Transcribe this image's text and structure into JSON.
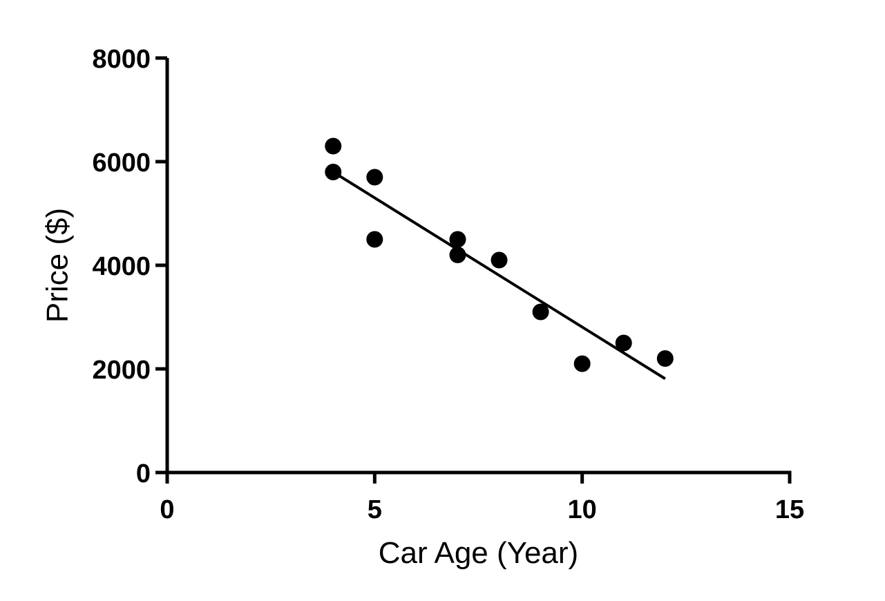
{
  "chart_data": {
    "type": "scatter",
    "title": "",
    "xlabel": "Car Age (Year)",
    "ylabel": "Price ($)",
    "xlim": [
      0,
      15
    ],
    "ylim": [
      0,
      8000
    ],
    "xticks": [
      0,
      5,
      10,
      15
    ],
    "yticks": [
      0,
      2000,
      4000,
      6000,
      8000
    ],
    "xtick_labels": [
      "0",
      "5",
      "10",
      "15"
    ],
    "ytick_labels": [
      "0",
      "2000",
      "4000",
      "6000",
      "8000"
    ],
    "grid": false,
    "legend": "none",
    "colors": {
      "points": "#000000",
      "line": "#000000",
      "axes": "#000000"
    },
    "series": [
      {
        "points": [
          {
            "x": 4,
            "y": 6300
          },
          {
            "x": 4,
            "y": 5800
          },
          {
            "x": 5,
            "y": 5700
          },
          {
            "x": 5,
            "y": 4500
          },
          {
            "x": 7,
            "y": 4500
          },
          {
            "x": 7,
            "y": 4200
          },
          {
            "x": 8,
            "y": 4100
          },
          {
            "x": 9,
            "y": 3100
          },
          {
            "x": 10,
            "y": 2100
          },
          {
            "x": 11,
            "y": 2500
          },
          {
            "x": 12,
            "y": 2200
          }
        ]
      }
    ],
    "fit_line": {
      "type": "linear",
      "x": [
        4,
        12
      ],
      "y": [
        5800,
        1810
      ]
    }
  }
}
